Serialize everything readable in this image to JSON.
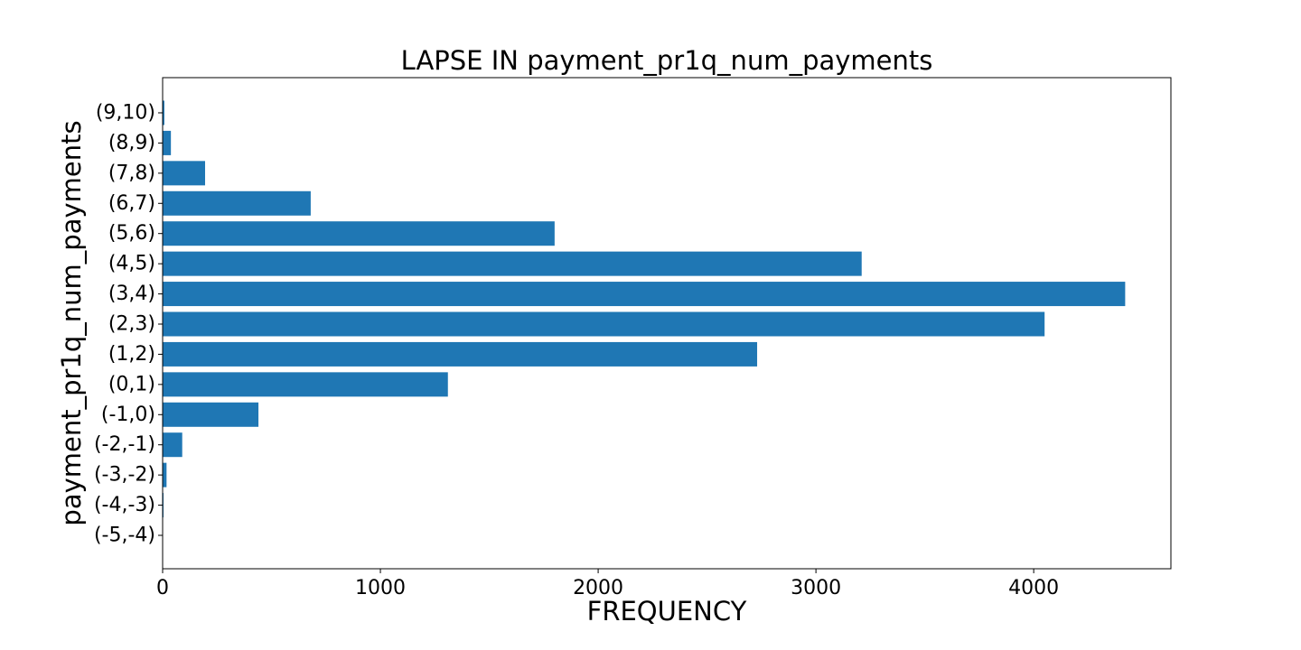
{
  "chart_data": {
    "type": "bar",
    "orientation": "horizontal",
    "title": "LAPSE IN payment_pr1q_num_payments",
    "xlabel": "FREQUENCY",
    "ylabel": "payment_pr1q_num_payments",
    "categories": [
      "(-5,-4)",
      "(-4,-3)",
      "(-3,-2)",
      "(-2,-1)",
      "(-1,0)",
      "(0,1)",
      "(1,2)",
      "(2,3)",
      "(3,4)",
      "(4,5)",
      "(5,6)",
      "(6,7)",
      "(7,8)",
      "(8,9)",
      "(9,10)"
    ],
    "values": [
      1,
      4,
      18,
      90,
      440,
      1310,
      2730,
      4050,
      4420,
      3210,
      1800,
      680,
      195,
      38,
      8
    ],
    "xlim": [
      0,
      4630
    ],
    "xticks": [
      0,
      1000,
      2000,
      3000,
      4000
    ],
    "bar_color": "#1f77b4",
    "grid": false
  }
}
